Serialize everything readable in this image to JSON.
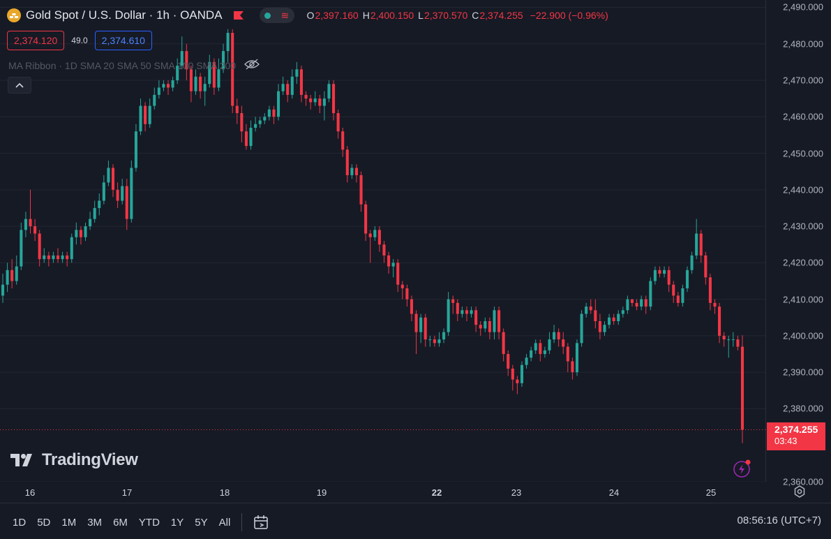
{
  "header": {
    "symbol_title": "Gold Spot / U.S. Dollar · 1h · OANDA",
    "ohlc": [
      {
        "label": "O",
        "value": "2,397.160"
      },
      {
        "label": "H",
        "value": "2,400.150"
      },
      {
        "label": "L",
        "value": "2,370.570"
      },
      {
        "label": "C",
        "value": "2,374.255"
      }
    ],
    "change": "−22.900 (−0.96%)"
  },
  "trade": {
    "sell_price": "2,374.120",
    "spread": "49.0",
    "buy_price": "2,374.610"
  },
  "indicator_legend": {
    "text": "MA Ribbon · 1D SMA 20 SMA 50 SMA 100 SMA 200"
  },
  "last_price": {
    "value": "2,374.255",
    "countdown": "03:43"
  },
  "watermark": {
    "text": "TradingView"
  },
  "toolbar": {
    "ranges": [
      "1D",
      "5D",
      "1M",
      "3M",
      "6M",
      "YTD",
      "1Y",
      "5Y",
      "All"
    ],
    "clock": "08:56:16 (UTC+7)"
  },
  "colors": {
    "up": "#26a69a",
    "down": "#f23645",
    "background": "#161a25",
    "grid": "#232632"
  },
  "icons": [
    "gold-coin-icon",
    "flag-icon",
    "wave-icon",
    "eye-off-icon",
    "chevron-up-icon",
    "tradingview-logo-icon",
    "flash-icon",
    "settings-icon",
    "goto-date-icon"
  ],
  "chart_data": {
    "type": "candlestick",
    "ylim": [
      2360,
      2492
    ],
    "y_ticks": [
      "2,490.000",
      "2,480.000",
      "2,470.000",
      "2,460.000",
      "2,450.000",
      "2,440.000",
      "2,430.000",
      "2,420.000",
      "2,410.000",
      "2,400.000",
      "2,390.000",
      "2,380.000",
      "2,360.000"
    ],
    "x_ticks": [
      {
        "label": "16",
        "bold": false
      },
      {
        "label": "17",
        "bold": false
      },
      {
        "label": "18",
        "bold": false
      },
      {
        "label": "19",
        "bold": false
      },
      {
        "label": "22",
        "bold": true
      },
      {
        "label": "23",
        "bold": false
      },
      {
        "label": "24",
        "bold": false
      },
      {
        "label": "25",
        "bold": false
      }
    ],
    "candles": [
      [
        2411,
        2414,
        2409,
        2417
      ],
      [
        2414,
        2418,
        2412,
        2420
      ],
      [
        2418,
        2415,
        2413,
        2421
      ],
      [
        2415,
        2419,
        2414,
        2422
      ],
      [
        2419,
        2429,
        2418,
        2431
      ],
      [
        2429,
        2432,
        2427,
        2434
      ],
      [
        2432,
        2430,
        2428,
        2440
      ],
      [
        2430,
        2428,
        2426,
        2432
      ],
      [
        2428,
        2421,
        2419,
        2429
      ],
      [
        2421,
        2422,
        2420,
        2424
      ],
      [
        2422,
        2421,
        2419,
        2423
      ],
      [
        2421,
        2422,
        2420,
        2423
      ],
      [
        2422,
        2421,
        2420,
        2424
      ],
      [
        2421,
        2422,
        2420,
        2423
      ],
      [
        2422,
        2421,
        2419,
        2423
      ],
      [
        2421,
        2427,
        2420,
        2428
      ],
      [
        2427,
        2429,
        2425,
        2431
      ],
      [
        2429,
        2427,
        2425,
        2430
      ],
      [
        2427,
        2430,
        2426,
        2431
      ],
      [
        2430,
        2432,
        2429,
        2434
      ],
      [
        2432,
        2435,
        2431,
        2437
      ],
      [
        2435,
        2437,
        2433,
        2439
      ],
      [
        2437,
        2442,
        2436,
        2444
      ],
      [
        2442,
        2446,
        2441,
        2448
      ],
      [
        2446,
        2440,
        2438,
        2447
      ],
      [
        2440,
        2437,
        2435,
        2442
      ],
      [
        2437,
        2441,
        2436,
        2443
      ],
      [
        2441,
        2432,
        2429,
        2443
      ],
      [
        2432,
        2446,
        2431,
        2448
      ],
      [
        2446,
        2456,
        2445,
        2458
      ],
      [
        2456,
        2463,
        2455,
        2465
      ],
      [
        2463,
        2458,
        2456,
        2464
      ],
      [
        2458,
        2463,
        2457,
        2465
      ],
      [
        2463,
        2466,
        2462,
        2468
      ],
      [
        2466,
        2468,
        2465,
        2470
      ],
      [
        2468,
        2469,
        2467,
        2470
      ],
      [
        2469,
        2468,
        2466,
        2470
      ],
      [
        2468,
        2470,
        2467,
        2471
      ],
      [
        2470,
        2474,
        2469,
        2476
      ],
      [
        2474,
        2478,
        2473,
        2482
      ],
      [
        2478,
        2473,
        2470,
        2480
      ],
      [
        2473,
        2467,
        2464,
        2474
      ],
      [
        2467,
        2471,
        2466,
        2473
      ],
      [
        2471,
        2467,
        2465,
        2472
      ],
      [
        2467,
        2469,
        2463,
        2471
      ],
      [
        2469,
        2475,
        2468,
        2477
      ],
      [
        2475,
        2468,
        2466,
        2476
      ],
      [
        2468,
        2473,
        2467,
        2476
      ],
      [
        2473,
        2478,
        2472,
        2480
      ],
      [
        2478,
        2483,
        2475,
        2484
      ],
      [
        2483,
        2463,
        2461,
        2484
      ],
      [
        2463,
        2461,
        2458,
        2465
      ],
      [
        2461,
        2456,
        2453,
        2463
      ],
      [
        2456,
        2452,
        2451,
        2458
      ],
      [
        2452,
        2457,
        2451,
        2459
      ],
      [
        2457,
        2458,
        2456,
        2460
      ],
      [
        2458,
        2459,
        2457,
        2460
      ],
      [
        2459,
        2460,
        2458,
        2461
      ],
      [
        2460,
        2462,
        2459,
        2463
      ],
      [
        2462,
        2460,
        2458,
        2463
      ],
      [
        2460,
        2467,
        2459,
        2469
      ],
      [
        2467,
        2469,
        2466,
        2471
      ],
      [
        2469,
        2466,
        2464,
        2470
      ],
      [
        2466,
        2471,
        2465,
        2473
      ],
      [
        2471,
        2473,
        2469,
        2475
      ],
      [
        2473,
        2466,
        2464,
        2474
      ],
      [
        2466,
        2465,
        2463,
        2467
      ],
      [
        2465,
        2464,
        2462,
        2466
      ],
      [
        2464,
        2465,
        2463,
        2467
      ],
      [
        2465,
        2463,
        2461,
        2466
      ],
      [
        2463,
        2465,
        2459,
        2467
      ],
      [
        2465,
        2469,
        2464,
        2470
      ],
      [
        2469,
        2461,
        2459,
        2470
      ],
      [
        2461,
        2456,
        2454,
        2462
      ],
      [
        2456,
        2451,
        2449,
        2457
      ],
      [
        2451,
        2444,
        2442,
        2452
      ],
      [
        2444,
        2446,
        2443,
        2447
      ],
      [
        2446,
        2444,
        2442,
        2447
      ],
      [
        2444,
        2436,
        2434,
        2445
      ],
      [
        2436,
        2428,
        2426,
        2437
      ],
      [
        2428,
        2427,
        2420,
        2429
      ],
      [
        2427,
        2429,
        2426,
        2430
      ],
      [
        2429,
        2425,
        2423,
        2430
      ],
      [
        2425,
        2422,
        2420,
        2426
      ],
      [
        2422,
        2419,
        2417,
        2423
      ],
      [
        2419,
        2420,
        2416,
        2421
      ],
      [
        2420,
        2414,
        2412,
        2421
      ],
      [
        2414,
        2413,
        2410,
        2415
      ],
      [
        2413,
        2410,
        2408,
        2414
      ],
      [
        2410,
        2406,
        2404,
        2411
      ],
      [
        2406,
        2401,
        2395,
        2407
      ],
      [
        2401,
        2405,
        2398,
        2406
      ],
      [
        2405,
        2399,
        2397,
        2406
      ],
      [
        2399,
        2399,
        2397,
        2400
      ],
      [
        2399,
        2398,
        2397,
        2400
      ],
      [
        2398,
        2399,
        2397,
        2401
      ],
      [
        2399,
        2401,
        2398,
        2402
      ],
      [
        2401,
        2410,
        2400,
        2412
      ],
      [
        2410,
        2409,
        2406,
        2411
      ],
      [
        2409,
        2406,
        2404,
        2410
      ],
      [
        2406,
        2407,
        2405,
        2408
      ],
      [
        2407,
        2406,
        2404,
        2408
      ],
      [
        2406,
        2407,
        2405,
        2408
      ],
      [
        2407,
        2403,
        2401,
        2408
      ],
      [
        2403,
        2402,
        2400,
        2404
      ],
      [
        2402,
        2404,
        2401,
        2405
      ],
      [
        2404,
        2401,
        2399,
        2405
      ],
      [
        2401,
        2407,
        2399,
        2408
      ],
      [
        2407,
        2401,
        2399,
        2408
      ],
      [
        2401,
        2395,
        2393,
        2402
      ],
      [
        2395,
        2391,
        2389,
        2396
      ],
      [
        2391,
        2388,
        2385,
        2392
      ],
      [
        2388,
        2387,
        2384,
        2389
      ],
      [
        2387,
        2392,
        2386,
        2393
      ],
      [
        2392,
        2394,
        2391,
        2395
      ],
      [
        2394,
        2396,
        2393,
        2397
      ],
      [
        2396,
        2398,
        2395,
        2399
      ],
      [
        2398,
        2395,
        2393,
        2399
      ],
      [
        2395,
        2396,
        2394,
        2397
      ],
      [
        2396,
        2399,
        2395,
        2401
      ],
      [
        2399,
        2401,
        2398,
        2403
      ],
      [
        2401,
        2399,
        2397,
        2402
      ],
      [
        2399,
        2397,
        2395,
        2401
      ],
      [
        2397,
        2393,
        2390,
        2398
      ],
      [
        2393,
        2390,
        2388,
        2394
      ],
      [
        2390,
        2398,
        2389,
        2399
      ],
      [
        2398,
        2406,
        2397,
        2407
      ],
      [
        2406,
        2408,
        2405,
        2409
      ],
      [
        2408,
        2407,
        2406,
        2410
      ],
      [
        2407,
        2404,
        2402,
        2410
      ],
      [
        2404,
        2401,
        2399,
        2406
      ],
      [
        2401,
        2403,
        2400,
        2404
      ],
      [
        2403,
        2405,
        2402,
        2406
      ],
      [
        2405,
        2404,
        2403,
        2406
      ],
      [
        2404,
        2406,
        2403,
        2407
      ],
      [
        2406,
        2407,
        2405,
        2408
      ],
      [
        2407,
        2410,
        2406,
        2411
      ],
      [
        2410,
        2409,
        2408,
        2410
      ],
      [
        2409,
        2408,
        2407,
        2410
      ],
      [
        2408,
        2410,
        2407,
        2411
      ],
      [
        2410,
        2408,
        2406,
        2411
      ],
      [
        2408,
        2415,
        2407,
        2416
      ],
      [
        2415,
        2418,
        2414,
        2419
      ],
      [
        2418,
        2417,
        2416,
        2419
      ],
      [
        2417,
        2418,
        2416,
        2419
      ],
      [
        2418,
        2414,
        2412,
        2419
      ],
      [
        2414,
        2411,
        2409,
        2415
      ],
      [
        2411,
        2409,
        2408,
        2412
      ],
      [
        2409,
        2413,
        2408,
        2414
      ],
      [
        2413,
        2418,
        2412,
        2419
      ],
      [
        2418,
        2422,
        2417,
        2423
      ],
      [
        2422,
        2428,
        2421,
        2432
      ],
      [
        2428,
        2422,
        2420,
        2429
      ],
      [
        2422,
        2416,
        2414,
        2423
      ],
      [
        2416,
        2409,
        2407,
        2417
      ],
      [
        2409,
        2408,
        2406,
        2410
      ],
      [
        2408,
        2400,
        2398,
        2409
      ],
      [
        2400,
        2399,
        2397,
        2401
      ],
      [
        2399,
        2399,
        2394,
        2400
      ],
      [
        2399,
        2399,
        2397,
        2401
      ],
      [
        2399,
        2397,
        2396,
        2400
      ],
      [
        2397,
        2374.255,
        2370.57,
        2400.15
      ]
    ]
  }
}
